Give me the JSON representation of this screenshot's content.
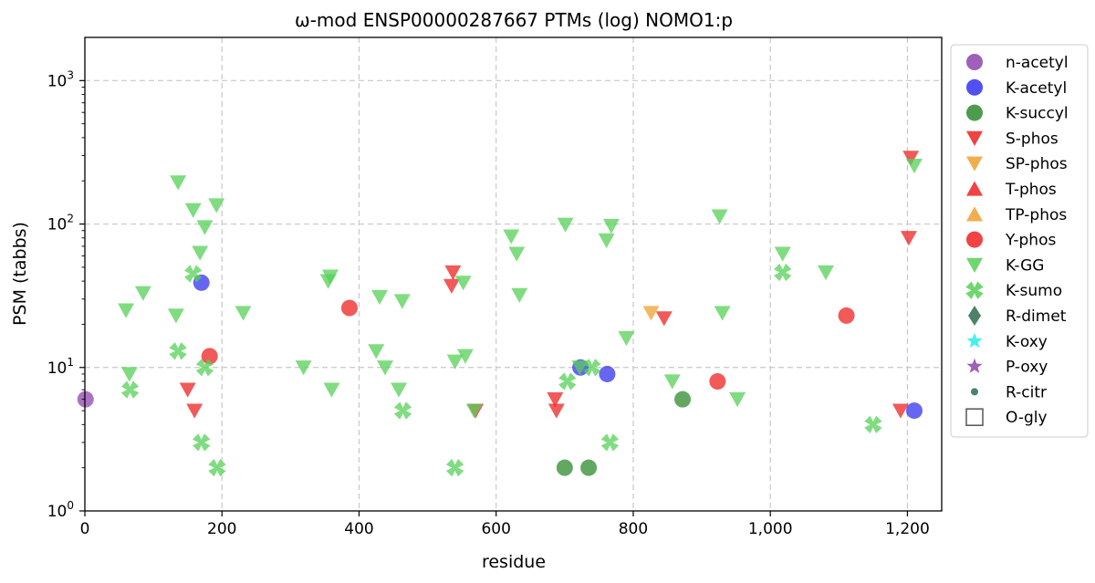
{
  "chart_data": {
    "type": "scatter",
    "title": "ω-mod ENSP00000287667 PTMs (log) NOMO1:p",
    "xlabel": "residue",
    "ylabel": "PSM (tabbs)",
    "xlim": [
      0,
      1250
    ],
    "ylim": [
      1,
      2000
    ],
    "yscale": "log",
    "grid": true,
    "legend_position": "outside-right",
    "xticks": [
      0,
      200,
      400,
      600,
      800,
      1000,
      1200
    ],
    "xtick_labels": [
      "0",
      "200",
      "400",
      "600",
      "800",
      "1,000",
      "1,200"
    ],
    "yticks": [
      1,
      10,
      100,
      1000
    ],
    "ytick_exponents": [
      "0",
      "1",
      "2",
      "3"
    ],
    "ytick_base": "10",
    "series": [
      {
        "name": "n-acetyl",
        "marker": "circle",
        "color": "#8e44ad",
        "points": [
          [
            1,
            6
          ]
        ]
      },
      {
        "name": "K-acetyl",
        "marker": "circle",
        "color": "#3333ee",
        "points": [
          [
            170,
            39
          ],
          [
            723,
            10
          ],
          [
            762,
            9
          ],
          [
            1210,
            5
          ]
        ]
      },
      {
        "name": "K-succyl",
        "marker": "circle",
        "color": "#2e8b2e",
        "points": [
          [
            700,
            2
          ],
          [
            735,
            2
          ],
          [
            872,
            6
          ]
        ]
      },
      {
        "name": "S-phos",
        "marker": "triangle-down",
        "color": "#ee2222",
        "points": [
          [
            150,
            7
          ],
          [
            160,
            5
          ],
          [
            535,
            37
          ],
          [
            537,
            46
          ],
          [
            570,
            5
          ],
          [
            686,
            6
          ],
          [
            688,
            5
          ],
          [
            845,
            22
          ],
          [
            1190,
            5
          ],
          [
            1202,
            80
          ],
          [
            1205,
            290
          ]
        ]
      },
      {
        "name": "SP-phos",
        "marker": "triangle-down",
        "color": "#eea030",
        "points": [
          [
            826,
            24
          ]
        ]
      },
      {
        "name": "T-phos",
        "marker": "triangle-up",
        "color": "#ee2222",
        "points": []
      },
      {
        "name": "TP-phos",
        "marker": "triangle-up",
        "color": "#eea030",
        "points": []
      },
      {
        "name": "Y-phos",
        "marker": "circle",
        "color": "#ee2222",
        "points": [
          [
            182,
            12
          ],
          [
            386,
            26
          ],
          [
            923,
            8
          ],
          [
            1111,
            23
          ]
        ]
      },
      {
        "name": "K-GG",
        "marker": "triangle-down",
        "color": "#55d055",
        "points": [
          [
            60,
            25
          ],
          [
            65,
            9
          ],
          [
            85,
            33
          ],
          [
            133,
            23
          ],
          [
            136,
            195
          ],
          [
            158,
            125
          ],
          [
            168,
            63
          ],
          [
            175,
            95
          ],
          [
            192,
            135
          ],
          [
            231,
            24
          ],
          [
            319,
            10
          ],
          [
            355,
            40
          ],
          [
            358,
            43
          ],
          [
            360,
            7
          ],
          [
            425,
            13
          ],
          [
            430,
            31
          ],
          [
            438,
            10
          ],
          [
            458,
            7
          ],
          [
            463,
            29
          ],
          [
            540,
            11
          ],
          [
            552,
            39
          ],
          [
            555,
            12
          ],
          [
            568,
            5
          ],
          [
            622,
            82
          ],
          [
            630,
            62
          ],
          [
            634,
            32
          ],
          [
            701,
            99
          ],
          [
            722,
            10
          ],
          [
            761,
            77
          ],
          [
            768,
            97
          ],
          [
            790,
            16
          ],
          [
            857,
            8
          ],
          [
            926,
            113
          ],
          [
            930,
            24
          ],
          [
            952,
            6
          ],
          [
            1018,
            62
          ],
          [
            1081,
            46
          ],
          [
            1210,
            255
          ]
        ]
      },
      {
        "name": "K-sumo",
        "marker": "x",
        "color": "#55d055",
        "points": [
          [
            66,
            7
          ],
          [
            136,
            13
          ],
          [
            158,
            45
          ],
          [
            170,
            3
          ],
          [
            175,
            10
          ],
          [
            193,
            2
          ],
          [
            464,
            5
          ],
          [
            540,
            2
          ],
          [
            704,
            8
          ],
          [
            740,
            10
          ],
          [
            766,
            3
          ],
          [
            1018,
            46
          ],
          [
            1150,
            4
          ]
        ]
      },
      {
        "name": "R-dimet",
        "marker": "diamond",
        "color": "#2f6b4f",
        "points": []
      },
      {
        "name": "K-oxy",
        "marker": "star",
        "color": "#22eeee",
        "points": []
      },
      {
        "name": "P-oxy",
        "marker": "star",
        "color": "#8e44ad",
        "points": []
      },
      {
        "name": "R-citr",
        "marker": "small-circle",
        "color": "#2f6b4f",
        "points": []
      },
      {
        "name": "O-gly",
        "marker": "square-open",
        "color": "#555555",
        "points": []
      }
    ]
  }
}
